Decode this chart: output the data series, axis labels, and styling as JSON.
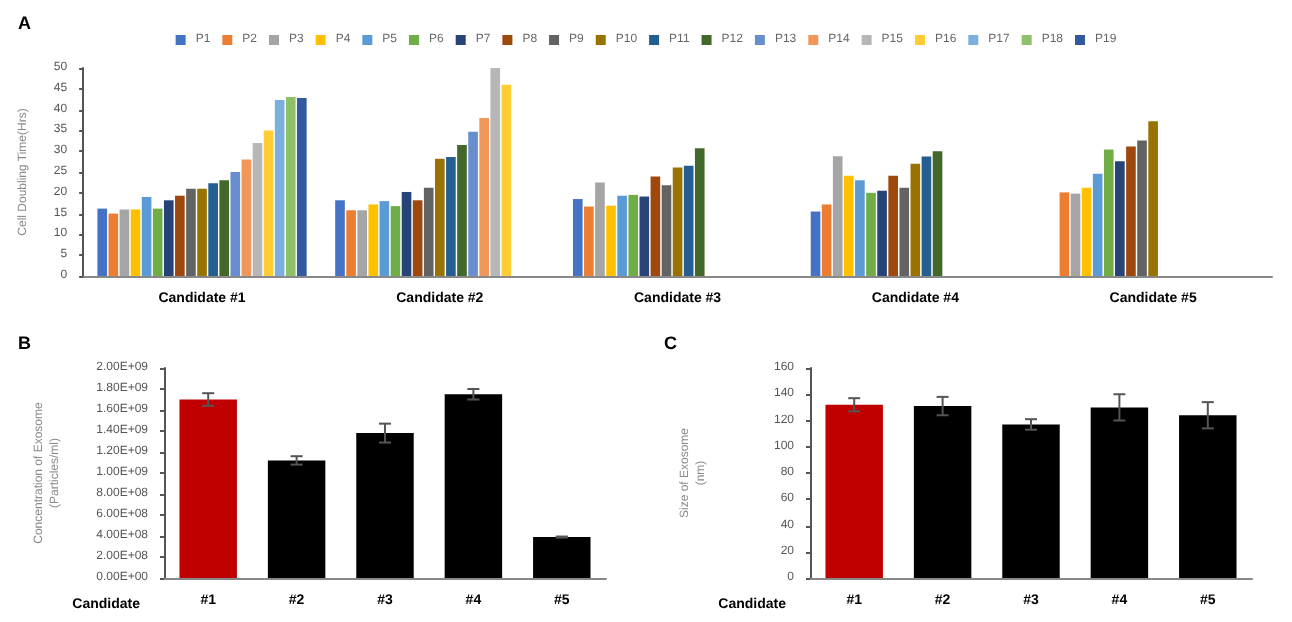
{
  "chart_data": [
    {
      "type": "bar",
      "title": "A",
      "ylabel": "Cell Doubling Time(Hrs)",
      "categories": [
        "Candidate #1",
        "Candidate #2",
        "Candidate #3",
        "Candidate #4",
        "Candidate #5"
      ],
      "ylim": [
        0,
        50
      ],
      "yticks": [
        0,
        5,
        10,
        15,
        20,
        25,
        30,
        35,
        40,
        45,
        50
      ],
      "grid": false,
      "legend": "top",
      "series": [
        {
          "name": "P1",
          "color": "#4472c4",
          "values": [
            16.2,
            18.2,
            18.5,
            15.5,
            null
          ]
        },
        {
          "name": "P2",
          "color": "#ed7d31",
          "values": [
            15,
            15.8,
            16.7,
            17.2,
            20.1
          ]
        },
        {
          "name": "P3",
          "color": "#a5a5a5",
          "values": [
            16,
            15.8,
            22.5,
            28.8,
            19.8
          ]
        },
        {
          "name": "P4",
          "color": "#ffc000",
          "values": [
            16,
            17.2,
            16.9,
            24.1,
            21.2
          ]
        },
        {
          "name": "P5",
          "color": "#5b9bd5",
          "values": [
            19,
            18,
            19.3,
            23,
            24.6
          ]
        },
        {
          "name": "P6",
          "color": "#70ad47",
          "values": [
            16.2,
            16.8,
            19.5,
            20,
            30.4
          ]
        },
        {
          "name": "P7",
          "color": "#264478",
          "values": [
            18.2,
            20.2,
            19.1,
            20.5,
            27.6
          ]
        },
        {
          "name": "P8",
          "color": "#9e480e",
          "values": [
            19.3,
            18.2,
            23.9,
            24.1,
            31.1
          ]
        },
        {
          "name": "P9",
          "color": "#636363",
          "values": [
            21,
            21.2,
            21.8,
            21.2,
            32.6
          ]
        },
        {
          "name": "P10",
          "color": "#997300",
          "values": [
            21,
            28.2,
            26.1,
            27,
            37.2
          ]
        },
        {
          "name": "P11",
          "color": "#255e91",
          "values": [
            22.3,
            28.6,
            26.5,
            28.7,
            null
          ]
        },
        {
          "name": "P12",
          "color": "#43682b",
          "values": [
            23,
            31.5,
            30.7,
            30,
            null
          ]
        },
        {
          "name": "P13",
          "color": "#698ed0",
          "values": [
            25,
            34.7,
            null,
            null,
            null
          ]
        },
        {
          "name": "P14",
          "color": "#f1975a",
          "values": [
            28,
            38,
            null,
            null,
            null
          ]
        },
        {
          "name": "P15",
          "color": "#b7b7b7",
          "values": [
            32,
            50,
            null,
            null,
            null
          ]
        },
        {
          "name": "P16",
          "color": "#ffcd33",
          "values": [
            35,
            46,
            null,
            null,
            null
          ]
        },
        {
          "name": "P17",
          "color": "#7cafdd",
          "values": [
            42.3,
            null,
            null,
            null,
            null
          ]
        },
        {
          "name": "P18",
          "color": "#8cc168",
          "values": [
            43,
            null,
            null,
            null,
            null
          ]
        },
        {
          "name": "P19",
          "color": "#335aa1",
          "values": [
            42.8,
            null,
            null,
            null,
            null
          ]
        }
      ]
    },
    {
      "type": "bar",
      "title": "B",
      "ylabel": "Concentration of Exosome\n(Particles/ml)",
      "xlabel": "Candidate",
      "categories": [
        "#1",
        "#2",
        "#3",
        "#4",
        "#5"
      ],
      "values": [
        1700000000,
        1120000000,
        1380000000,
        1750000000,
        390000000
      ],
      "errors": [
        60000000,
        40000000,
        90000000,
        50000000,
        5000000
      ],
      "colors": [
        "#c00000",
        "#000000",
        "#000000",
        "#000000",
        "#000000"
      ],
      "ylim": [
        0,
        2000000000
      ],
      "grid": false,
      "yticks": [
        {
          "value": 0,
          "label": "0.00E+00"
        },
        {
          "value": 200000000,
          "label": "2.00E+08"
        },
        {
          "value": 400000000,
          "label": "4.00E+08"
        },
        {
          "value": 600000000,
          "label": "6.00E+08"
        },
        {
          "value": 800000000,
          "label": "8.00E+08"
        },
        {
          "value": 1000000000,
          "label": "1.00E+09"
        },
        {
          "value": 1200000000,
          "label": "1.20E+09"
        },
        {
          "value": 1400000000,
          "label": "1.40E+09"
        },
        {
          "value": 1600000000,
          "label": "1.60E+09"
        },
        {
          "value": 1800000000,
          "label": "1.80E+09"
        },
        {
          "value": 2000000000,
          "label": "2.00E+09"
        }
      ]
    },
    {
      "type": "bar",
      "title": "C",
      "ylabel": "Size of Exosome\n(nm)",
      "xlabel": "Candidate",
      "categories": [
        "#1",
        "#2",
        "#3",
        "#4",
        "#5"
      ],
      "values": [
        132,
        131,
        117,
        130,
        124
      ],
      "errors": [
        5,
        7,
        4,
        10,
        10
      ],
      "colors": [
        "#c00000",
        "#000000",
        "#000000",
        "#000000",
        "#000000"
      ],
      "ylim": [
        0,
        160
      ],
      "yticks": [
        0,
        20,
        40,
        60,
        80,
        100,
        120,
        140,
        160
      ],
      "grid": false
    }
  ]
}
